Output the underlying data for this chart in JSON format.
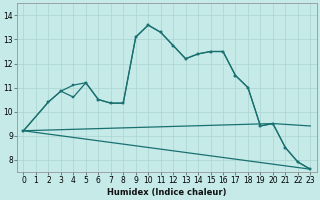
{
  "xlabel": "Humidex (Indice chaleur)",
  "xlim": [
    -0.5,
    23.5
  ],
  "ylim": [
    7.5,
    14.5
  ],
  "yticks": [
    8,
    9,
    10,
    11,
    12,
    13,
    14
  ],
  "xticks": [
    0,
    1,
    2,
    3,
    4,
    5,
    6,
    7,
    8,
    9,
    10,
    11,
    12,
    13,
    14,
    15,
    16,
    17,
    18,
    19,
    20,
    21,
    22,
    23
  ],
  "background_color": "#c5eae8",
  "grid_color": "#aad5d2",
  "line_color": "#1a7070",
  "lines": [
    {
      "x": [
        0,
        2,
        3,
        4,
        5,
        6,
        7,
        8,
        9,
        10,
        11,
        12,
        13,
        14,
        15,
        16,
        17,
        18,
        19,
        20,
        21,
        22,
        23
      ],
      "y": [
        9.2,
        10.4,
        10.85,
        10.6,
        11.2,
        10.5,
        10.35,
        10.35,
        13.1,
        13.6,
        13.3,
        12.75,
        12.2,
        12.4,
        12.5,
        12.5,
        11.5,
        11.0,
        9.4,
        9.5,
        8.5,
        7.9,
        7.6
      ],
      "markers": true
    },
    {
      "x": [
        0,
        2,
        3,
        4,
        5,
        6,
        7,
        8,
        9,
        10,
        11,
        12,
        13,
        14,
        15,
        16,
        17,
        18,
        19,
        20,
        21,
        22,
        23
      ],
      "y": [
        9.2,
        10.4,
        10.85,
        11.1,
        11.2,
        10.5,
        10.35,
        10.35,
        13.1,
        13.6,
        13.3,
        12.75,
        12.2,
        12.4,
        12.5,
        12.5,
        11.5,
        11.0,
        9.4,
        9.5,
        8.5,
        7.9,
        7.6
      ],
      "markers": true
    },
    {
      "x": [
        0,
        20,
        23
      ],
      "y": [
        9.2,
        9.5,
        9.4
      ],
      "markers": false
    },
    {
      "x": [
        0,
        23
      ],
      "y": [
        9.2,
        7.6
      ],
      "markers": false
    }
  ]
}
